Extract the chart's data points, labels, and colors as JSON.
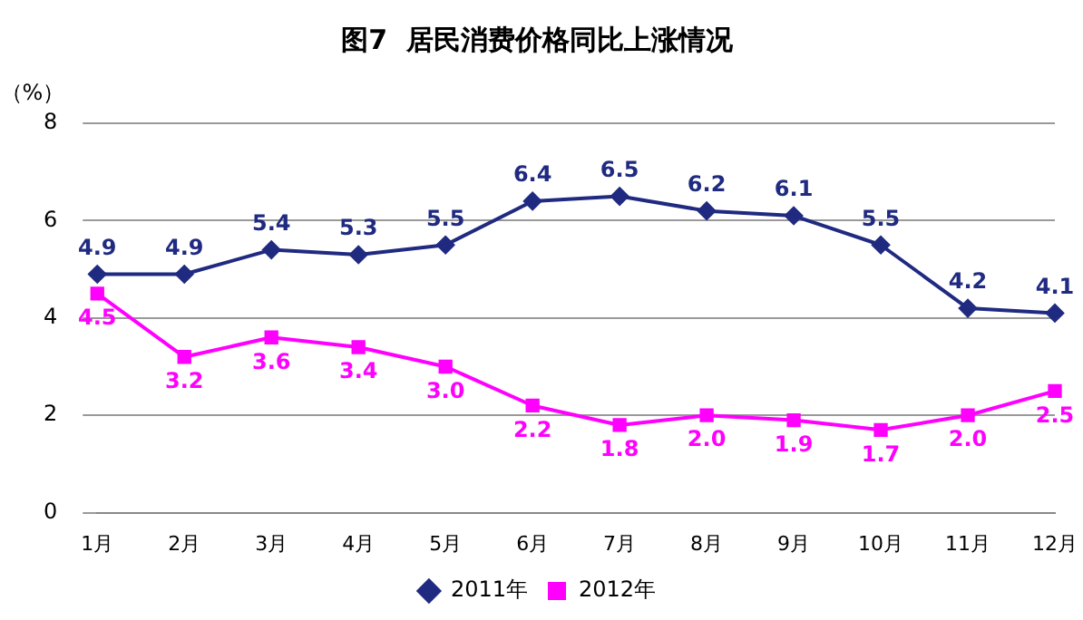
{
  "chart_data": {
    "type": "line",
    "title": "图7  居民消费价格同比上涨情况",
    "ylabel": "（%）",
    "categories": [
      "1月",
      "2月",
      "3月",
      "4月",
      "5月",
      "6月",
      "7月",
      "8月",
      "9月",
      "10月",
      "11月",
      "12月"
    ],
    "series": [
      {
        "name": "2011年",
        "color": "#1f2a80",
        "marker": "diamond",
        "values": [
          4.9,
          4.9,
          5.4,
          5.3,
          5.5,
          6.4,
          6.5,
          6.2,
          6.1,
          5.5,
          4.2,
          4.1
        ],
        "value_labels": [
          "4.9",
          "4.9",
          "5.4",
          "5.3",
          "5.5",
          "6.4",
          "6.5",
          "6.2",
          "6.1",
          "5.5",
          "4.2",
          "4.1"
        ]
      },
      {
        "name": "2012年",
        "color": "#ff00ff",
        "marker": "square",
        "values": [
          4.5,
          3.2,
          3.6,
          3.4,
          3.0,
          2.2,
          1.8,
          2.0,
          1.9,
          1.7,
          2.0,
          2.5
        ],
        "value_labels": [
          "4.5",
          "3.2",
          "3.6",
          "3.4",
          "3.0",
          "2.2",
          "1.8",
          "2.0",
          "1.9",
          "1.7",
          "2.0",
          "2.5"
        ]
      }
    ],
    "ylim": [
      0,
      8
    ],
    "yticks": [
      0,
      2,
      4,
      6,
      8
    ],
    "grid": "y",
    "legend": "bottom",
    "line_style": "solid"
  }
}
